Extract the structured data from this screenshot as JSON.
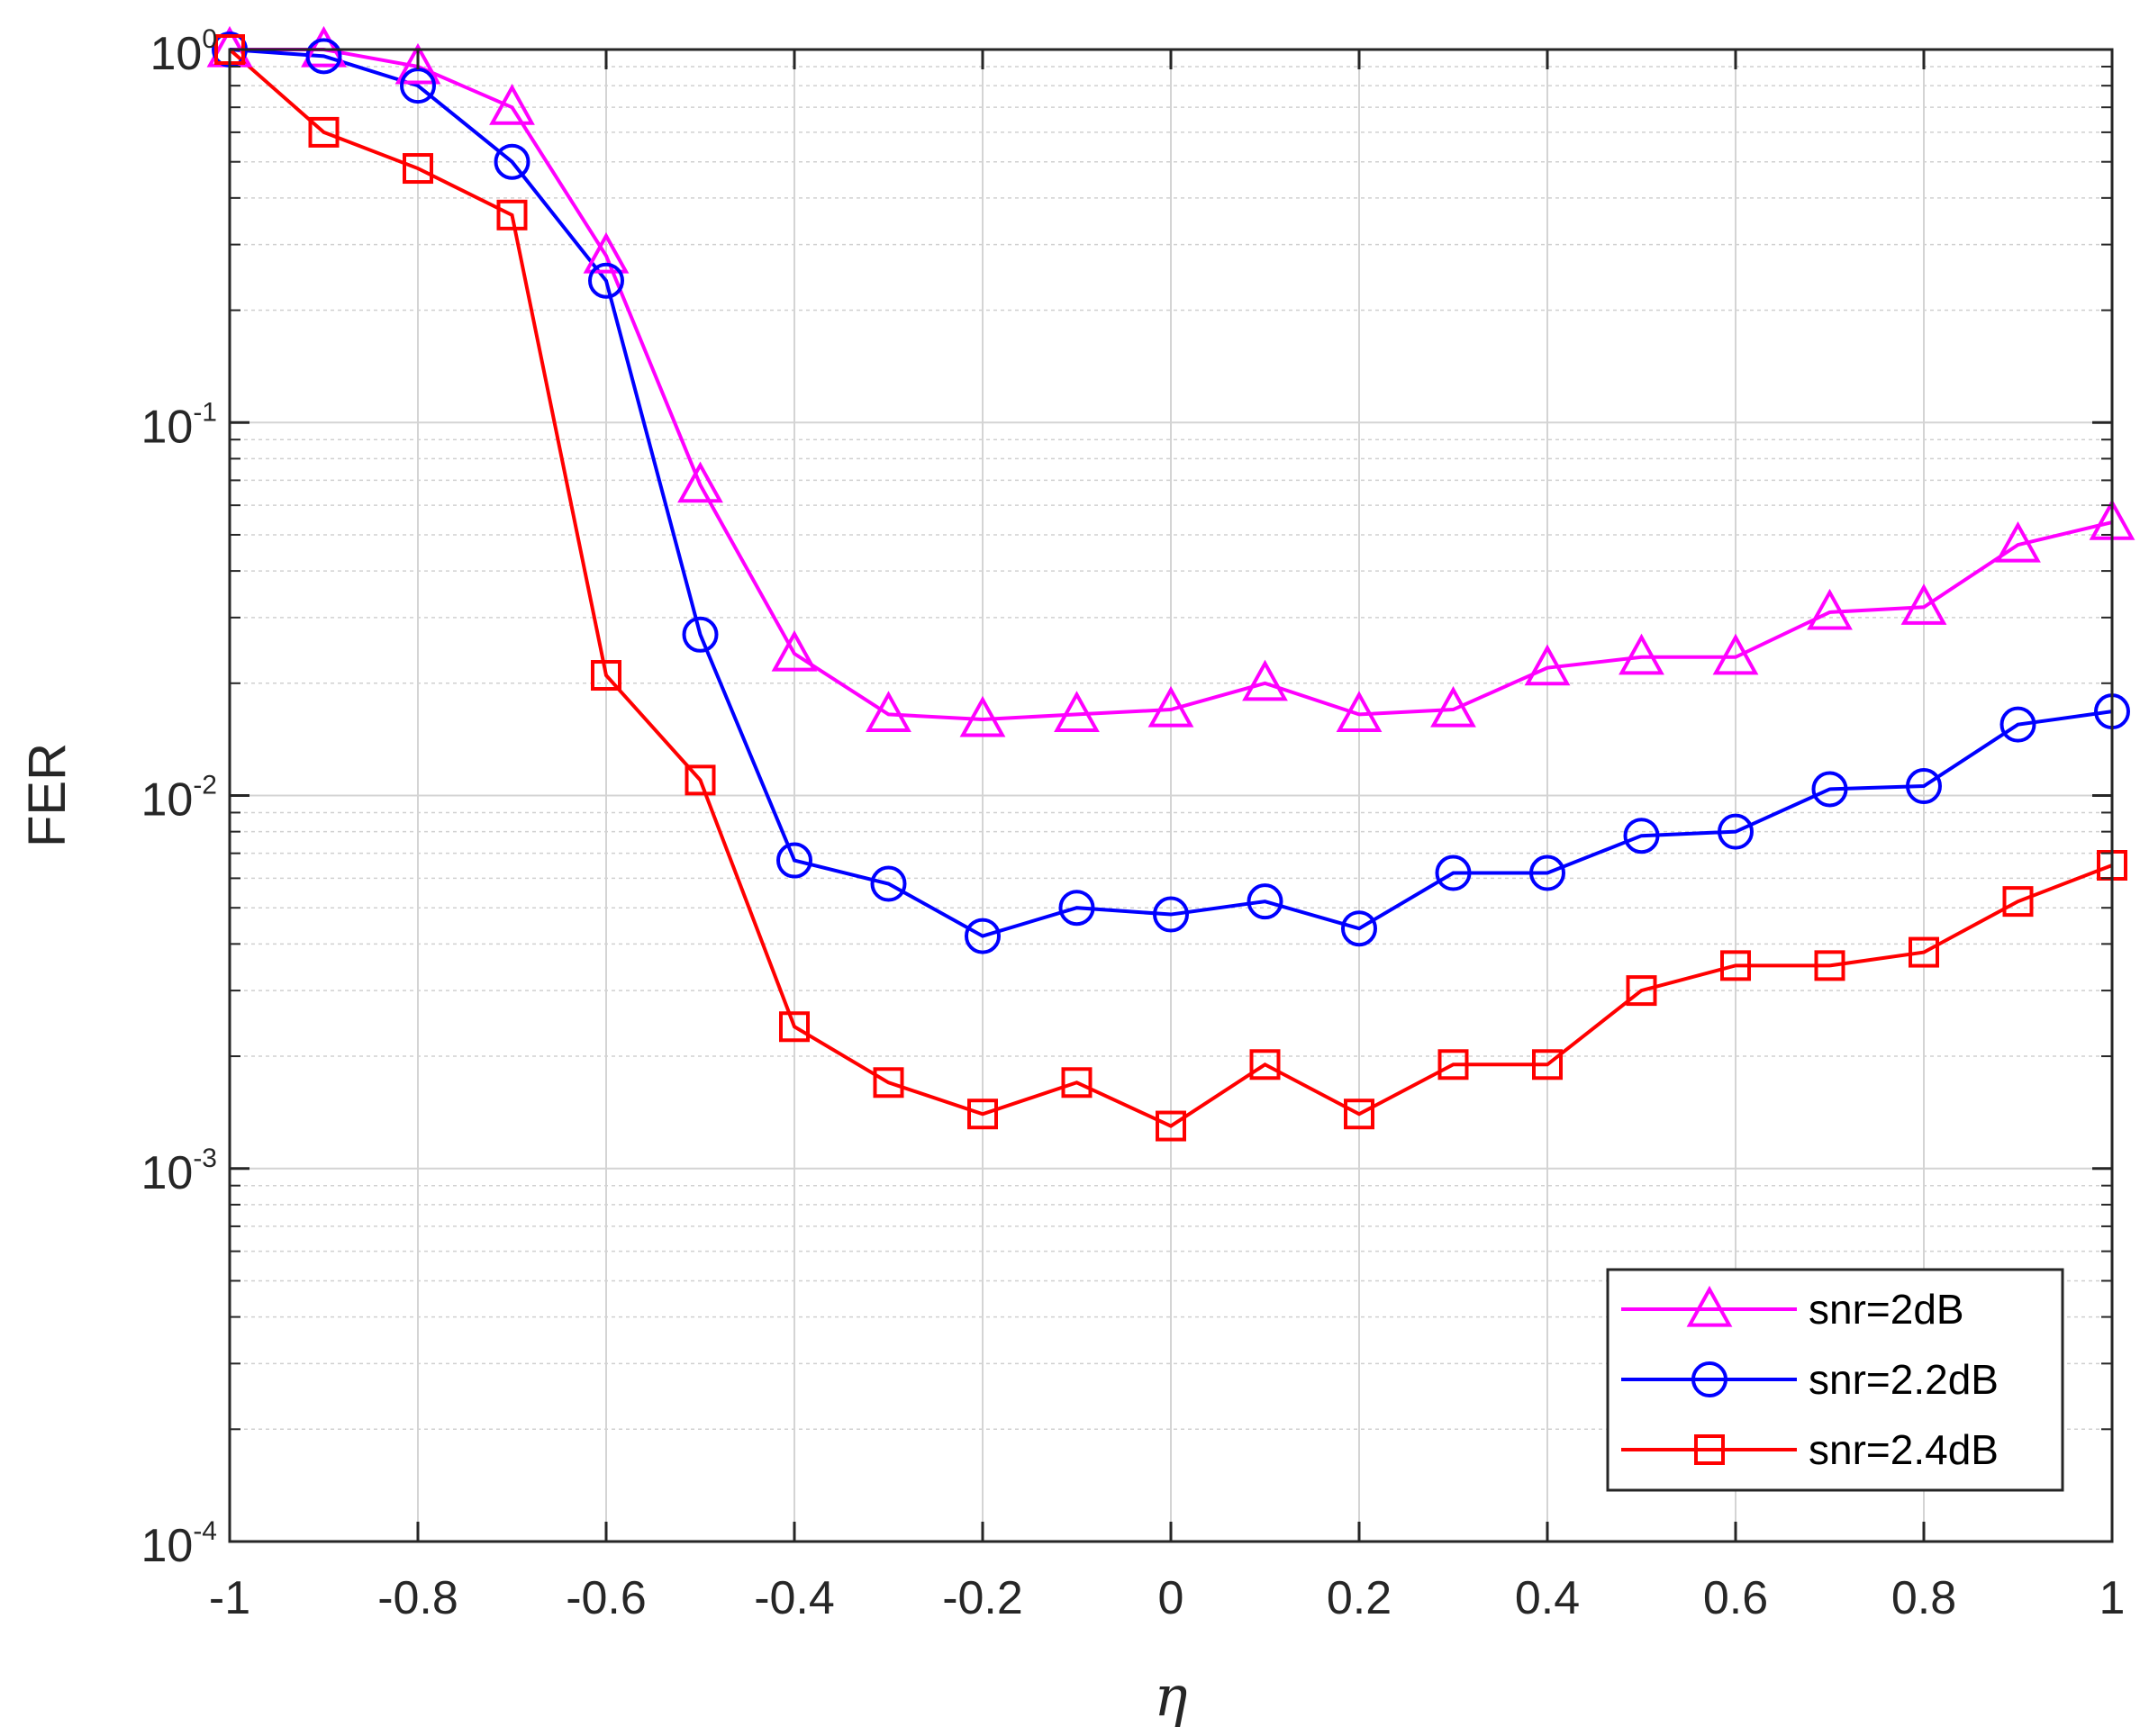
{
  "chart_data": {
    "type": "line",
    "xlabel": "η",
    "ylabel": "FER",
    "xlim": [
      -1,
      1
    ],
    "ylim": [
      0.0001,
      1
    ],
    "yscale": "log",
    "grid": true,
    "minor_grid": true,
    "legend_position": "bottom-right",
    "x_ticks": [
      "-1",
      "-0.8",
      "-0.6",
      "-0.4",
      "-0.2",
      "0",
      "0.2",
      "0.4",
      "0.6",
      "0.8",
      "1"
    ],
    "y_ticks": [
      {
        "base": "10",
        "exp": "0"
      },
      {
        "base": "10",
        "exp": "-1"
      },
      {
        "base": "10",
        "exp": "-2"
      },
      {
        "base": "10",
        "exp": "-3"
      },
      {
        "base": "10",
        "exp": "-4"
      }
    ],
    "x": [
      -1,
      -0.9,
      -0.8,
      -0.7,
      -0.6,
      -0.5,
      -0.4,
      -0.3,
      -0.2,
      -0.1,
      0,
      0.1,
      0.2,
      0.3,
      0.4,
      0.5,
      0.6,
      0.7,
      0.8,
      0.9,
      1
    ],
    "series": [
      {
        "name": "snr=2dB",
        "color": "#ff00ff",
        "marker": "triangle",
        "values": [
          1.0,
          1.0,
          0.9,
          0.7,
          0.28,
          0.068,
          0.024,
          0.0165,
          0.016,
          0.0165,
          0.017,
          0.02,
          0.0165,
          0.017,
          0.022,
          0.0235,
          0.0235,
          0.031,
          0.032,
          0.047,
          0.054
        ]
      },
      {
        "name": "snr=2.2dB",
        "color": "#0000ff",
        "marker": "circle",
        "values": [
          1.0,
          0.96,
          0.8,
          0.5,
          0.24,
          0.027,
          0.0067,
          0.0058,
          0.0042,
          0.005,
          0.0048,
          0.0052,
          0.0044,
          0.0062,
          0.0062,
          0.0078,
          0.008,
          0.0104,
          0.0106,
          0.0155,
          0.0168
        ]
      },
      {
        "name": "snr=2.4dB",
        "color": "#ff0000",
        "marker": "square",
        "values": [
          1.0,
          0.6,
          0.48,
          0.36,
          0.021,
          0.011,
          0.0024,
          0.0017,
          0.0014,
          0.0017,
          0.0013,
          0.0019,
          0.0014,
          0.0019,
          0.0019,
          0.003,
          0.0035,
          0.0035,
          0.0038,
          0.0052,
          0.0065
        ]
      }
    ]
  }
}
